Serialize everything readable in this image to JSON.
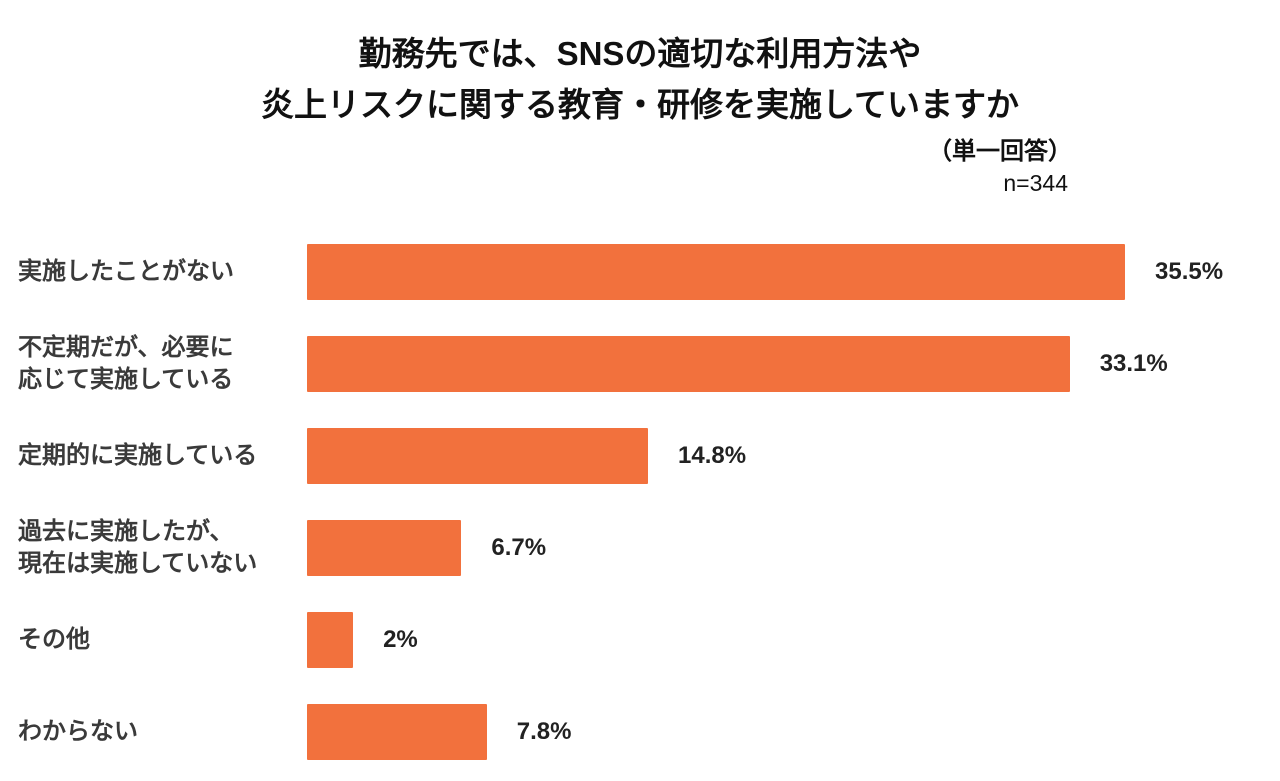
{
  "title": "勤務先では、SNSの適切な利用方法や\n炎上リスクに関する教育・研修を実施していますか",
  "subtitle": "（単一回答）",
  "sample_size": "n=344",
  "colors": {
    "bar": "#F2713D",
    "title_text": "#111111",
    "label_text": "#3A3A3A"
  },
  "chart_data": {
    "type": "bar",
    "orientation": "horizontal",
    "title": "勤務先では、SNSの適切な利用方法や炎上リスクに関する教育・研修を実施していますか",
    "subtitle": "（単一回答）",
    "n": 344,
    "categories": [
      "実施したことがない",
      "不定期だが、必要に\n応じて実施している",
      "定期的に実施している",
      "過去に実施したが、\n現在は実施していない",
      "その他",
      "わからない"
    ],
    "values": [
      35.5,
      33.1,
      14.8,
      6.7,
      2,
      7.8
    ],
    "value_labels": [
      "35.5%",
      "33.1%",
      "14.8%",
      "6.7%",
      "2%",
      "7.8%"
    ],
    "xmax": 35.5,
    "xlabel": "",
    "ylabel": "",
    "grid": false,
    "legend": "none"
  }
}
